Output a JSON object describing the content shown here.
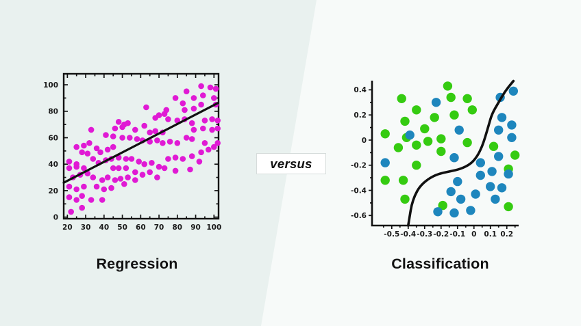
{
  "page": {
    "background": {
      "left": "#e9f1ef",
      "right": "#f7faf9"
    },
    "versus_label": "versus"
  },
  "chart_data": [
    {
      "type": "scatter",
      "title": "Regression",
      "xlabel": "",
      "ylabel": "",
      "frame": "box",
      "grid": false,
      "legend": "none",
      "axis_color": "#111111",
      "point_color": "#e01ad4",
      "point_radius": 4.3,
      "xlim": [
        18,
        102.5
      ],
      "ylim": [
        -1.2,
        108.3
      ],
      "x_ticks": [
        20,
        30,
        40,
        50,
        60,
        70,
        80,
        90,
        100
      ],
      "x_tick_labels": [
        "20",
        "30",
        "40",
        "50",
        "60",
        "70",
        "80",
        "90",
        "100"
      ],
      "x_minor_ticks": [
        25,
        35,
        45,
        55,
        65,
        75,
        85,
        95
      ],
      "y_ticks": [
        0,
        20,
        40,
        60,
        80,
        100
      ],
      "y_tick_labels": [
        "0",
        "20",
        "40",
        "60",
        "80",
        "100"
      ],
      "y_minor_ticks": [
        10,
        30,
        50,
        70,
        90
      ],
      "trend_line": {
        "from": [
          18,
          26
        ],
        "to": [
          102.3,
          86.3
        ],
        "color": "#111111"
      },
      "points": [
        [
          93,
          99
        ],
        [
          98,
          98
        ],
        [
          101,
          97
        ],
        [
          85,
          95
        ],
        [
          89,
          90
        ],
        [
          94,
          92
        ],
        [
          100,
          90
        ],
        [
          79,
          90
        ],
        [
          83,
          86
        ],
        [
          93,
          85
        ],
        [
          101,
          85
        ],
        [
          84,
          81
        ],
        [
          89,
          82
        ],
        [
          63,
          83
        ],
        [
          74,
          81
        ],
        [
          68,
          75
        ],
        [
          70,
          77
        ],
        [
          73,
          78
        ],
        [
          75,
          74
        ],
        [
          80,
          73
        ],
        [
          84,
          74
        ],
        [
          88,
          71
        ],
        [
          95,
          73
        ],
        [
          99,
          74
        ],
        [
          102,
          73
        ],
        [
          94,
          67
        ],
        [
          99,
          66
        ],
        [
          102,
          67
        ],
        [
          89,
          66
        ],
        [
          48,
          72
        ],
        [
          51,
          70
        ],
        [
          33,
          66
        ],
        [
          46,
          67
        ],
        [
          50,
          68
        ],
        [
          53,
          71
        ],
        [
          57,
          66
        ],
        [
          62,
          69
        ],
        [
          65,
          64
        ],
        [
          68,
          65
        ],
        [
          72,
          64
        ],
        [
          41,
          62
        ],
        [
          45,
          61
        ],
        [
          50,
          60
        ],
        [
          54,
          60
        ],
        [
          58,
          59
        ],
        [
          61,
          58
        ],
        [
          65,
          57
        ],
        [
          69,
          58
        ],
        [
          72,
          56
        ],
        [
          76,
          57
        ],
        [
          80,
          56
        ],
        [
          85,
          60
        ],
        [
          88,
          59
        ],
        [
          25,
          53
        ],
        [
          29,
          54
        ],
        [
          32,
          56
        ],
        [
          28,
          49
        ],
        [
          31,
          48
        ],
        [
          36,
          52
        ],
        [
          38,
          49
        ],
        [
          42,
          51
        ],
        [
          45,
          53
        ],
        [
          34,
          44
        ],
        [
          37,
          41
        ],
        [
          41,
          43
        ],
        [
          44,
          44
        ],
        [
          48,
          45
        ],
        [
          52,
          44
        ],
        [
          55,
          44
        ],
        [
          59,
          42
        ],
        [
          62,
          40
        ],
        [
          66,
          41
        ],
        [
          70,
          38
        ],
        [
          21,
          42
        ],
        [
          25,
          40
        ],
        [
          21,
          37
        ],
        [
          25,
          38
        ],
        [
          29,
          37
        ],
        [
          45,
          37
        ],
        [
          48,
          37
        ],
        [
          52,
          37
        ],
        [
          73,
          37
        ],
        [
          79,
          35
        ],
        [
          75,
          44
        ],
        [
          79,
          45
        ],
        [
          83,
          44
        ],
        [
          88,
          46
        ],
        [
          93,
          49
        ],
        [
          97,
          51
        ],
        [
          100,
          53
        ],
        [
          95,
          56
        ],
        [
          102,
          56
        ],
        [
          92,
          42
        ],
        [
          87,
          36
        ],
        [
          23,
          30
        ],
        [
          27,
          32
        ],
        [
          31,
          33
        ],
        [
          34,
          30
        ],
        [
          39,
          28
        ],
        [
          42,
          30
        ],
        [
          46,
          28
        ],
        [
          49,
          29
        ],
        [
          53,
          30
        ],
        [
          57,
          28
        ],
        [
          65,
          34
        ],
        [
          61,
          32
        ],
        [
          57,
          34
        ],
        [
          69,
          30
        ],
        [
          21,
          23
        ],
        [
          25,
          21
        ],
        [
          29,
          23
        ],
        [
          36,
          23
        ],
        [
          40,
          21
        ],
        [
          44,
          22
        ],
        [
          51,
          25
        ],
        [
          28,
          16
        ],
        [
          21,
          15
        ],
        [
          25,
          13
        ],
        [
          33,
          13
        ],
        [
          39,
          13
        ],
        [
          28,
          7
        ],
        [
          22,
          4
        ]
      ]
    },
    {
      "type": "scatter",
      "title": "Classification",
      "xlabel": "",
      "ylabel": "",
      "frame": "open",
      "grid": false,
      "legend": "none",
      "axis_color": "#111111",
      "point_radius": 6.7,
      "xlim": [
        -0.62,
        0.272
      ],
      "ylim": [
        -0.68,
        0.473
      ],
      "x_ticks": [
        -0.5,
        -0.4,
        -0.3,
        -0.2,
        -0.1,
        0,
        0.1,
        0.2
      ],
      "x_tick_labels": [
        "-0.5",
        "-0.4",
        "-0.3",
        "-0.2",
        "-0.1",
        "0",
        "0.1",
        "0.2"
      ],
      "x_minor_ticks": [
        -0.55,
        -0.45,
        -0.35,
        -0.25,
        -0.15,
        -0.05,
        0.05,
        0.15,
        0.25
      ],
      "y_ticks": [
        0.4,
        0.2,
        0,
        -0.2,
        -0.4,
        -0.6
      ],
      "y_tick_labels": [
        "0.4",
        "0.2",
        "0",
        "-0.2",
        "-0.4",
        "-0.6"
      ],
      "y_minor_ticks": [
        0.3,
        0.1,
        -0.1,
        -0.3,
        -0.5
      ],
      "decision_boundary": {
        "color": "#111111",
        "points": [
          [
            -0.4,
            -0.68
          ],
          [
            -0.39,
            -0.6
          ],
          [
            -0.38,
            -0.52
          ],
          [
            -0.36,
            -0.44
          ],
          [
            -0.33,
            -0.37
          ],
          [
            -0.28,
            -0.31
          ],
          [
            -0.22,
            -0.27
          ],
          [
            -0.15,
            -0.25
          ],
          [
            -0.08,
            -0.23
          ],
          [
            -0.02,
            -0.19
          ],
          [
            0.02,
            -0.13
          ],
          [
            0.05,
            -0.05
          ],
          [
            0.07,
            0.03
          ],
          [
            0.09,
            0.12
          ],
          [
            0.11,
            0.21
          ],
          [
            0.15,
            0.3
          ],
          [
            0.19,
            0.39
          ],
          [
            0.24,
            0.47
          ]
        ]
      },
      "series": [
        {
          "name": "green-class",
          "color": "#35cb11",
          "points": [
            [
              -0.16,
              0.43
            ],
            [
              -0.44,
              0.33
            ],
            [
              -0.14,
              0.34
            ],
            [
              -0.04,
              0.33
            ],
            [
              -0.35,
              0.24
            ],
            [
              -0.01,
              0.24
            ],
            [
              -0.24,
              0.18
            ],
            [
              -0.42,
              0.15
            ],
            [
              -0.12,
              0.2
            ],
            [
              -0.3,
              0.09
            ],
            [
              -0.54,
              0.05
            ],
            [
              -0.41,
              0.02
            ],
            [
              -0.28,
              -0.01
            ],
            [
              -0.2,
              0.01
            ],
            [
              -0.04,
              -0.02
            ],
            [
              -0.46,
              -0.06
            ],
            [
              -0.35,
              -0.04
            ],
            [
              -0.2,
              -0.09
            ],
            [
              0.12,
              -0.05
            ],
            [
              0.25,
              -0.12
            ],
            [
              -0.35,
              -0.2
            ],
            [
              -0.54,
              -0.32
            ],
            [
              -0.43,
              -0.32
            ],
            [
              0.21,
              -0.23
            ],
            [
              -0.42,
              -0.47
            ],
            [
              -0.19,
              -0.52
            ],
            [
              0.21,
              -0.53
            ]
          ]
        },
        {
          "name": "blue-class",
          "color": "#1e86bd",
          "points": [
            [
              -0.23,
              0.3
            ],
            [
              0.24,
              0.39
            ],
            [
              0.16,
              0.34
            ],
            [
              0.17,
              0.18
            ],
            [
              -0.09,
              0.08
            ],
            [
              0.15,
              0.08
            ],
            [
              0.23,
              0.12
            ],
            [
              -0.39,
              0.04
            ],
            [
              0.23,
              0.02
            ],
            [
              -0.54,
              -0.18
            ],
            [
              -0.12,
              -0.14
            ],
            [
              0.15,
              -0.13
            ],
            [
              0.04,
              -0.18
            ],
            [
              0.11,
              -0.25
            ],
            [
              0.04,
              -0.28
            ],
            [
              0.21,
              -0.27
            ],
            [
              -0.1,
              -0.33
            ],
            [
              0.1,
              -0.37
            ],
            [
              0.17,
              -0.38
            ],
            [
              -0.14,
              -0.41
            ],
            [
              0.01,
              -0.43
            ],
            [
              -0.08,
              -0.47
            ],
            [
              0.13,
              -0.47
            ],
            [
              -0.22,
              -0.57
            ],
            [
              -0.12,
              -0.58
            ],
            [
              -0.02,
              -0.56
            ]
          ]
        }
      ]
    }
  ]
}
